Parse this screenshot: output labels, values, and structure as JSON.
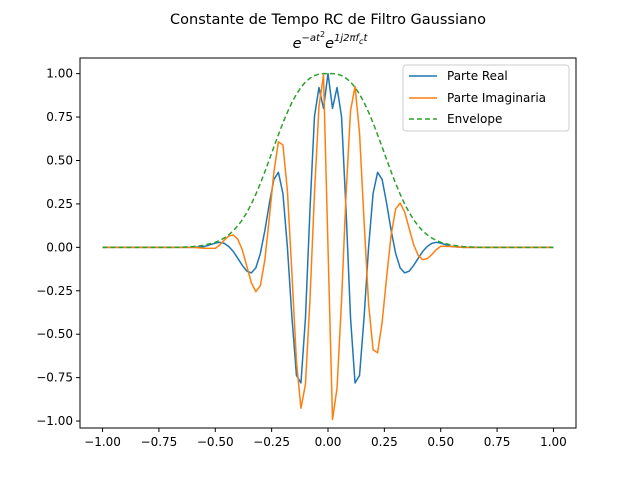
{
  "chart_data": {
    "type": "line",
    "title": "Constante de Tempo RC de Filtro Gaussiano",
    "subtitle": "e^{-at^2} e^{1j2πf_c t}",
    "subtitle_parts": {
      "e1": "e",
      "exp1": "−at",
      "sq": "2",
      "e2": "e",
      "exp2": "1j2πf",
      "sub": "c",
      "exp2b": "t"
    },
    "xlabel": "",
    "ylabel": "",
    "xlim": [
      -1.1,
      1.1
    ],
    "ylim": [
      -1.04,
      1.09
    ],
    "x_ticks": [
      -1.0,
      -0.75,
      -0.5,
      -0.25,
      0.0,
      0.25,
      0.5,
      0.75,
      1.0
    ],
    "x_tick_labels": [
      "−1.00",
      "−0.75",
      "−0.50",
      "−0.25",
      "0.00",
      "0.25",
      "0.50",
      "0.75",
      "1.00"
    ],
    "y_ticks": [
      -1.0,
      -0.75,
      -0.5,
      -0.25,
      0.0,
      0.25,
      0.5,
      0.75,
      1.0
    ],
    "y_tick_labels": [
      "−1.00",
      "−0.75",
      "−0.50",
      "−0.25",
      "0.00",
      "0.25",
      "0.50",
      "0.75",
      "1.00"
    ],
    "grid": false,
    "legend_position": "upper-right",
    "x": [
      -1.0,
      -0.95,
      -0.9,
      -0.85,
      -0.8,
      -0.75,
      -0.7,
      -0.65,
      -0.6,
      -0.55,
      -0.5,
      -0.48,
      -0.46,
      -0.44,
      -0.42,
      -0.4,
      -0.38,
      -0.36,
      -0.34,
      -0.32,
      -0.3,
      -0.28,
      -0.26,
      -0.24,
      -0.22,
      -0.2,
      -0.18,
      -0.16,
      -0.14,
      -0.12,
      -0.1,
      -0.08,
      -0.06,
      -0.04,
      -0.02,
      0.0,
      0.02,
      0.04,
      0.06,
      0.08,
      0.1,
      0.12,
      0.14,
      0.16,
      0.18,
      0.2,
      0.22,
      0.24,
      0.26,
      0.28,
      0.3,
      0.32,
      0.34,
      0.36,
      0.38,
      0.4,
      0.42,
      0.44,
      0.46,
      0.48,
      0.5,
      0.55,
      0.6,
      0.65,
      0.7,
      0.75,
      0.8,
      0.85,
      0.9,
      0.95,
      1.0
    ],
    "series": [
      {
        "name": "Parte Real",
        "color": "#1f77b4",
        "style": "solid",
        "values": [
          0.0,
          0.0,
          0.0,
          0.0,
          0.0,
          0.0,
          0.0,
          0.0,
          0.0,
          0.004,
          0.024,
          0.029,
          0.023,
          0.005,
          -0.024,
          -0.063,
          -0.104,
          -0.137,
          -0.147,
          -0.118,
          -0.035,
          0.097,
          0.254,
          0.391,
          0.432,
          0.31,
          -0.001,
          -0.403,
          -0.737,
          -0.781,
          -0.407,
          0.216,
          0.754,
          0.92,
          0.8,
          1.0,
          0.8,
          0.92,
          0.754,
          0.216,
          -0.407,
          -0.781,
          -0.737,
          -0.403,
          -0.001,
          0.31,
          0.432,
          0.391,
          0.254,
          0.097,
          -0.035,
          -0.118,
          -0.147,
          -0.137,
          -0.104,
          -0.063,
          -0.024,
          0.005,
          0.023,
          0.029,
          0.024,
          0.004,
          0.0,
          0.0,
          0.0,
          0.0,
          0.0,
          0.0,
          0.0,
          0.0,
          0.0
        ]
      },
      {
        "name": "Parte Imaginaria",
        "color": "#ff7f0e",
        "style": "solid",
        "values": [
          0.0,
          0.0,
          0.0,
          0.0,
          0.0,
          0.0,
          0.0,
          0.0,
          0.0,
          -0.005,
          -0.006,
          0.014,
          0.042,
          0.065,
          0.071,
          0.046,
          -0.015,
          -0.109,
          -0.204,
          -0.255,
          -0.221,
          -0.072,
          0.172,
          0.433,
          0.607,
          0.59,
          0.325,
          -0.151,
          -0.656,
          -0.926,
          -0.788,
          -0.302,
          0.31,
          0.811,
          0.991,
          0.0,
          -0.991,
          -0.811,
          -0.31,
          0.302,
          0.788,
          0.926,
          0.656,
          0.151,
          -0.325,
          -0.59,
          -0.607,
          -0.433,
          -0.172,
          0.072,
          0.221,
          0.255,
          0.204,
          0.109,
          0.015,
          -0.046,
          -0.071,
          -0.065,
          -0.042,
          -0.014,
          0.006,
          0.005,
          0.0,
          0.0,
          0.0,
          0.0,
          0.0,
          0.0,
          0.0,
          0.0,
          0.0
        ]
      },
      {
        "name": "Envelope",
        "color": "#2ca02c",
        "style": "dashed",
        "values": [
          0.0,
          0.0,
          0.0,
          0.0,
          0.0,
          0.0,
          0.0,
          0.001,
          0.004,
          0.012,
          0.029,
          0.04,
          0.054,
          0.072,
          0.095,
          0.124,
          0.159,
          0.201,
          0.25,
          0.306,
          0.368,
          0.435,
          0.506,
          0.578,
          0.648,
          0.716,
          0.778,
          0.834,
          0.882,
          0.921,
          0.952,
          0.974,
          0.989,
          0.997,
          1.0,
          1.0,
          1.0,
          0.997,
          0.989,
          0.974,
          0.952,
          0.921,
          0.882,
          0.834,
          0.778,
          0.716,
          0.648,
          0.578,
          0.506,
          0.435,
          0.368,
          0.306,
          0.25,
          0.201,
          0.159,
          0.124,
          0.095,
          0.072,
          0.054,
          0.04,
          0.029,
          0.012,
          0.004,
          0.001,
          0.0,
          0.0,
          0.0,
          0.0,
          0.0,
          0.0,
          0.0
        ]
      }
    ]
  }
}
